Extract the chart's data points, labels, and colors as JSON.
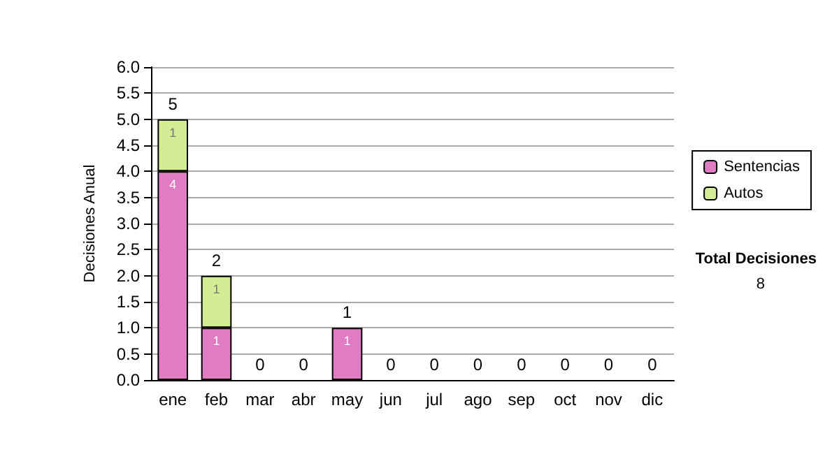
{
  "chart_data": {
    "type": "bar",
    "stacked": true,
    "ylabel": "Decisiones Anual",
    "categories": [
      "ene",
      "feb",
      "mar",
      "abr",
      "may",
      "jun",
      "jul",
      "ago",
      "sep",
      "oct",
      "nov",
      "dic"
    ],
    "series": [
      {
        "name": "Sentencias",
        "color": "#e07cc4",
        "values": [
          4,
          1,
          0,
          0,
          1,
          0,
          0,
          0,
          0,
          0,
          0,
          0
        ],
        "value_labels": [
          "4",
          "1",
          null,
          null,
          "1",
          null,
          null,
          null,
          null,
          null,
          null,
          null
        ]
      },
      {
        "name": "Autos",
        "color": "#d4ec94",
        "values": [
          1,
          1,
          0,
          0,
          0,
          0,
          0,
          0,
          0,
          0,
          0,
          0
        ],
        "value_labels": [
          "1",
          "1",
          null,
          null,
          null,
          null,
          null,
          null,
          null,
          null,
          null,
          null
        ]
      }
    ],
    "totals": [
      "5",
      "2",
      "0",
      "0",
      "1",
      "0",
      "0",
      "0",
      "0",
      "0",
      "0",
      "0"
    ],
    "ylim": [
      0,
      6
    ],
    "yticks": [
      {
        "value": 0,
        "label": "0.0"
      },
      {
        "value": 0.5,
        "label": "0.5"
      },
      {
        "value": 1,
        "label": "1.0"
      },
      {
        "value": 1.5,
        "label": "1.5"
      },
      {
        "value": 2,
        "label": "2.0"
      },
      {
        "value": 2.5,
        "label": "2.5"
      },
      {
        "value": 3,
        "label": "3.0"
      },
      {
        "value": 3.5,
        "label": "3.5"
      },
      {
        "value": 4,
        "label": "4.0"
      },
      {
        "value": 4.5,
        "label": "4.5"
      },
      {
        "value": 5,
        "label": "5.0"
      },
      {
        "value": 5.5,
        "label": "5.5"
      },
      {
        "value": 6,
        "label": "6.0"
      }
    ],
    "grid": "y",
    "legend": "right",
    "annotations": [
      "Total Decisiones",
      "8"
    ]
  }
}
